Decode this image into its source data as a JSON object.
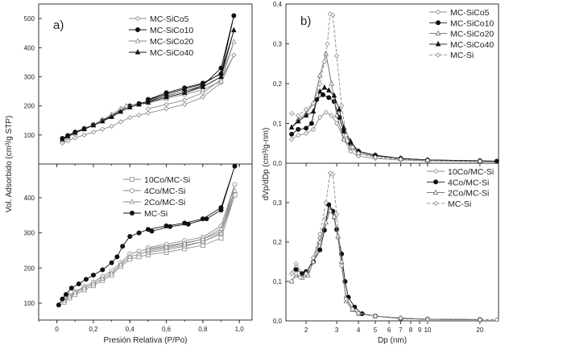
{
  "chart_data": [
    {
      "id": "a-top",
      "type": "line",
      "panel_label": "a)",
      "xscale": "linear",
      "xlim": [
        -0.1,
        1.07
      ],
      "ylim": [
        0,
        550
      ],
      "yticks": [
        100,
        200,
        300,
        400,
        500
      ],
      "xticks": [
        0,
        0.2,
        0.4,
        0.6,
        0.8,
        1.0
      ],
      "xticklabels": [],
      "legend": "top-center",
      "series": [
        {
          "name": "MC-SiCo5",
          "marker": "open-diamond",
          "color": "#8a8a8a",
          "dash": false,
          "x": [
            0.03,
            0.06,
            0.1,
            0.15,
            0.2,
            0.25,
            0.3,
            0.35,
            0.4,
            0.45,
            0.5,
            0.6,
            0.7,
            0.8,
            0.9,
            0.97,
            0.9,
            0.8,
            0.7,
            0.6,
            0.5
          ],
          "y": [
            72,
            80,
            90,
            100,
            110,
            120,
            130,
            145,
            160,
            168,
            175,
            190,
            205,
            230,
            280,
            375,
            290,
            245,
            220,
            205,
            190
          ]
        },
        {
          "name": "MC-SiCo10",
          "marker": "filled-circle",
          "color": "#111111",
          "dash": false,
          "x": [
            0.03,
            0.06,
            0.1,
            0.15,
            0.2,
            0.25,
            0.3,
            0.35,
            0.4,
            0.45,
            0.5,
            0.6,
            0.7,
            0.8,
            0.9,
            0.97,
            0.9,
            0.8,
            0.7,
            0.6,
            0.5
          ],
          "y": [
            88,
            98,
            110,
            122,
            135,
            150,
            165,
            185,
            200,
            208,
            215,
            235,
            250,
            270,
            330,
            510,
            310,
            278,
            262,
            245,
            222
          ]
        },
        {
          "name": "MC-SiCo20",
          "marker": "open-triangle",
          "color": "#8a8a8a",
          "dash": false,
          "x": [
            0.03,
            0.06,
            0.1,
            0.15,
            0.2,
            0.25,
            0.3,
            0.35,
            0.38,
            0.45,
            0.5,
            0.6,
            0.7,
            0.8,
            0.9,
            0.97,
            0.9,
            0.8,
            0.7,
            0.6,
            0.5
          ],
          "y": [
            80,
            92,
            105,
            120,
            135,
            152,
            170,
            190,
            200,
            205,
            210,
            225,
            240,
            255,
            285,
            420,
            300,
            265,
            250,
            235,
            218
          ]
        },
        {
          "name": "MC-SiCo40",
          "marker": "filled-triangle",
          "color": "#111111",
          "dash": false,
          "x": [
            0.03,
            0.06,
            0.1,
            0.15,
            0.2,
            0.25,
            0.3,
            0.35,
            0.4,
            0.45,
            0.5,
            0.6,
            0.7,
            0.8,
            0.9,
            0.97,
            0.9,
            0.8,
            0.7,
            0.6,
            0.5
          ],
          "y": [
            85,
            96,
            108,
            120,
            133,
            147,
            162,
            180,
            195,
            205,
            212,
            230,
            245,
            265,
            300,
            460,
            312,
            275,
            258,
            240,
            220
          ]
        }
      ]
    },
    {
      "id": "a-bottom",
      "type": "line",
      "xscale": "linear",
      "xlim": [
        -0.1,
        1.07
      ],
      "ylim": [
        52,
        496
      ],
      "yticks": [
        100,
        200,
        300,
        400
      ],
      "xticks": [
        0,
        0.2,
        0.4,
        0.6,
        0.8,
        1.0
      ],
      "xticklabels": [
        "0",
        "0,2",
        "0,4",
        "0,6",
        "0,8",
        "1,0"
      ],
      "xlabel": "Presión Relativa (P/Po)",
      "ylabel": "Vol. Adsorbido (cm³/g STP)",
      "legend": "top-center",
      "series": [
        {
          "name": "10Co/MC-Si",
          "marker": "open-square",
          "color": "#8a8a8a",
          "dash": false,
          "x": [
            0.04,
            0.07,
            0.1,
            0.15,
            0.2,
            0.25,
            0.3,
            0.35,
            0.4,
            0.45,
            0.5,
            0.6,
            0.7,
            0.8,
            0.9,
            0.975,
            0.9,
            0.8,
            0.7,
            0.6,
            0.5
          ],
          "y": [
            103,
            115,
            125,
            138,
            150,
            165,
            180,
            205,
            225,
            232,
            238,
            245,
            255,
            265,
            285,
            408,
            300,
            275,
            262,
            252,
            244
          ]
        },
        {
          "name": "4Co/MC-Si",
          "marker": "open-circle",
          "color": "#8a8a8a",
          "dash": false,
          "x": [
            0.04,
            0.07,
            0.1,
            0.15,
            0.2,
            0.25,
            0.3,
            0.35,
            0.4,
            0.45,
            0.5,
            0.6,
            0.7,
            0.8,
            0.9,
            0.975,
            0.9,
            0.8,
            0.7,
            0.6,
            0.5
          ],
          "y": [
            110,
            122,
            133,
            147,
            160,
            176,
            192,
            215,
            240,
            248,
            255,
            263,
            272,
            282,
            305,
            438,
            320,
            288,
            278,
            268,
            258
          ]
        },
        {
          "name": "2Co/MC-Si",
          "marker": "open-triangle",
          "color": "#8a8a8a",
          "dash": false,
          "x": [
            0.04,
            0.07,
            0.1,
            0.15,
            0.2,
            0.25,
            0.3,
            0.35,
            0.4,
            0.45,
            0.5,
            0.6,
            0.7,
            0.8,
            0.9,
            0.975,
            0.9,
            0.8,
            0.7,
            0.6,
            0.5
          ],
          "y": [
            107,
            119,
            130,
            143,
            155,
            170,
            185,
            210,
            232,
            240,
            248,
            257,
            265,
            275,
            298,
            420,
            312,
            282,
            270,
            260,
            252
          ]
        },
        {
          "name": "MC-Si",
          "marker": "filled-circle",
          "color": "#111111",
          "dash": false,
          "x": [
            0.01,
            0.03,
            0.05,
            0.08,
            0.12,
            0.16,
            0.2,
            0.25,
            0.3,
            0.33,
            0.36,
            0.4,
            0.45,
            0.5,
            0.6,
            0.7,
            0.8,
            0.9,
            0.975,
            0.9,
            0.82,
            0.72,
            0.62,
            0.52
          ],
          "y": [
            95,
            112,
            125,
            143,
            155,
            168,
            180,
            195,
            215,
            232,
            262,
            290,
            300,
            310,
            320,
            328,
            340,
            372,
            490,
            365,
            340,
            325,
            318,
            305
          ]
        }
      ]
    },
    {
      "id": "b-top",
      "type": "line",
      "panel_label": "b)",
      "xscale": "log",
      "xlim": [
        1.53,
        25.6
      ],
      "ylim": [
        0,
        0.4
      ],
      "yticks": [
        0,
        0.1,
        0.2,
        0.3,
        0.4
      ],
      "yticklabels": [
        "0,0",
        "0,1",
        "0,2",
        "0,3",
        "0,4"
      ],
      "xticks": [
        2,
        3,
        4,
        5,
        6,
        7,
        8,
        9,
        10,
        20
      ],
      "xticklabels": [],
      "legend": "top-right",
      "series": [
        {
          "name": "MC-SiCo5",
          "marker": "open-diamond",
          "color": "#8a8a8a",
          "dash": false,
          "x": [
            1.65,
            1.8,
            2.0,
            2.2,
            2.4,
            2.6,
            2.8,
            3.0,
            3.3,
            3.6,
            4,
            5,
            7,
            10,
            20,
            25
          ],
          "y": [
            0.06,
            0.07,
            0.075,
            0.085,
            0.115,
            0.128,
            0.12,
            0.1,
            0.06,
            0.03,
            0.018,
            0.012,
            0.008,
            0.006,
            0.004,
            0.004
          ]
        },
        {
          "name": "MC-SiCo10",
          "marker": "filled-circle",
          "color": "#111111",
          "dash": false,
          "x": [
            1.65,
            1.8,
            2.0,
            2.15,
            2.3,
            2.5,
            2.7,
            2.9,
            3.1,
            3.3,
            3.6,
            4,
            5,
            7,
            10,
            20,
            25
          ],
          "y": [
            0.073,
            0.085,
            0.088,
            0.1,
            0.16,
            0.172,
            0.165,
            0.155,
            0.115,
            0.08,
            0.05,
            0.03,
            0.02,
            0.012,
            0.008,
            0.006,
            0.005
          ]
        },
        {
          "name": "MC-SiCo20",
          "marker": "open-triangle",
          "color": "#6a6a6a",
          "dash": false,
          "x": [
            1.65,
            1.8,
            2.0,
            2.2,
            2.4,
            2.6,
            2.8,
            3.0,
            3.3,
            3.6,
            4,
            5,
            7,
            10,
            20
          ],
          "y": [
            0.09,
            0.11,
            0.125,
            0.15,
            0.22,
            0.275,
            0.2,
            0.12,
            0.06,
            0.04,
            0.025,
            0.018,
            0.012,
            0.008,
            0.005
          ]
        },
        {
          "name": "MC-SiCo40",
          "marker": "filled-triangle",
          "color": "#111111",
          "dash": false,
          "x": [
            1.65,
            1.8,
            2.0,
            2.2,
            2.4,
            2.55,
            2.7,
            2.9,
            3.1,
            3.3,
            3.6,
            4,
            5,
            7,
            10,
            20
          ],
          "y": [
            0.09,
            0.105,
            0.12,
            0.13,
            0.18,
            0.19,
            0.183,
            0.17,
            0.135,
            0.09,
            0.055,
            0.03,
            0.02,
            0.012,
            0.008,
            0.006
          ]
        },
        {
          "name": "MC-Si",
          "marker": "open-diamond",
          "color": "#8a8a8a",
          "dash": true,
          "x": [
            1.65,
            1.8,
            2.0,
            2.2,
            2.4,
            2.55,
            2.65,
            2.75,
            2.85,
            3.0,
            3.2,
            3.4,
            3.7,
            4,
            5,
            7,
            10,
            20
          ],
          "y": [
            0.125,
            0.12,
            0.135,
            0.15,
            0.2,
            0.255,
            0.3,
            0.375,
            0.372,
            0.27,
            0.145,
            0.07,
            0.04,
            0.025,
            0.015,
            0.01,
            0.007,
            0.005
          ]
        }
      ]
    },
    {
      "id": "b-bottom",
      "type": "line",
      "xscale": "log",
      "xlim": [
        1.53,
        25.6
      ],
      "ylim": [
        0,
        0.4
      ],
      "yticks": [
        0,
        0.1,
        0.2,
        0.3
      ],
      "yticklabels": [
        "0,0",
        "0,1",
        "0,2",
        "0,3"
      ],
      "xticks": [
        2,
        3,
        4,
        5,
        6,
        7,
        8,
        9,
        10,
        20
      ],
      "xticklabels": [
        "2",
        "3",
        "4",
        "5",
        "6",
        "7",
        "8",
        "9",
        "10",
        "20"
      ],
      "xlabel": "Dp (nm)",
      "ylabel": "dVp/dDp (cm³/g-nm)",
      "legend": "top-right",
      "series": [
        {
          "name": "10Co/MC-Si",
          "marker": "open-diamond",
          "color": "#8a8a8a",
          "dash": false,
          "x": [
            1.65,
            1.75,
            1.9,
            2.05,
            2.2,
            2.4,
            2.6,
            2.75,
            2.9,
            3.05,
            3.2,
            3.4,
            3.7,
            4,
            5,
            7,
            10,
            20
          ],
          "y": [
            0.12,
            0.145,
            0.12,
            0.125,
            0.16,
            0.21,
            0.26,
            0.285,
            0.26,
            0.21,
            0.14,
            0.06,
            0.03,
            0.02,
            0.012,
            0.007,
            0.004,
            0.003
          ]
        },
        {
          "name": "4Co/MC-Si",
          "marker": "filled-circle",
          "color": "#111111",
          "dash": false,
          "x": [
            1.75,
            1.9,
            2.0,
            2.2,
            2.4,
            2.55,
            2.7,
            2.85,
            3.0,
            3.2,
            3.35,
            3.5,
            3.8,
            4.2,
            5,
            7,
            10,
            20
          ],
          "y": [
            0.13,
            0.12,
            0.125,
            0.15,
            0.18,
            0.23,
            0.295,
            0.278,
            0.232,
            0.17,
            0.1,
            0.06,
            0.035,
            0.018,
            0.012,
            0.006,
            0.004,
            0.003
          ]
        },
        {
          "name": "2Co/MC-Si",
          "marker": "open-triangle",
          "color": "#6a6a6a",
          "dash": false,
          "x": [
            1.65,
            1.75,
            1.9,
            2.05,
            2.2,
            2.4,
            2.6,
            2.75,
            2.9,
            3.05,
            3.2,
            3.4,
            3.7,
            4,
            5,
            7,
            10,
            20
          ],
          "y": [
            0.1,
            0.115,
            0.11,
            0.115,
            0.15,
            0.2,
            0.25,
            0.28,
            0.265,
            0.215,
            0.15,
            0.05,
            0.028,
            0.018,
            0.012,
            0.007,
            0.004,
            0.003
          ]
        },
        {
          "name": "MC-Si",
          "marker": "open-diamond",
          "color": "#8a8a8a",
          "dash": true,
          "x": [
            1.65,
            1.75,
            1.85,
            2.0,
            2.2,
            2.4,
            2.6,
            2.75,
            2.85,
            3.0,
            3.2,
            3.4,
            3.7,
            4,
            5,
            7,
            10,
            20,
            25
          ],
          "y": [
            0.1,
            0.12,
            0.11,
            0.12,
            0.16,
            0.22,
            0.3,
            0.375,
            0.372,
            0.27,
            0.14,
            0.055,
            0.03,
            0.02,
            0.012,
            0.007,
            0.004,
            0.003,
            0.003
          ]
        }
      ]
    }
  ]
}
